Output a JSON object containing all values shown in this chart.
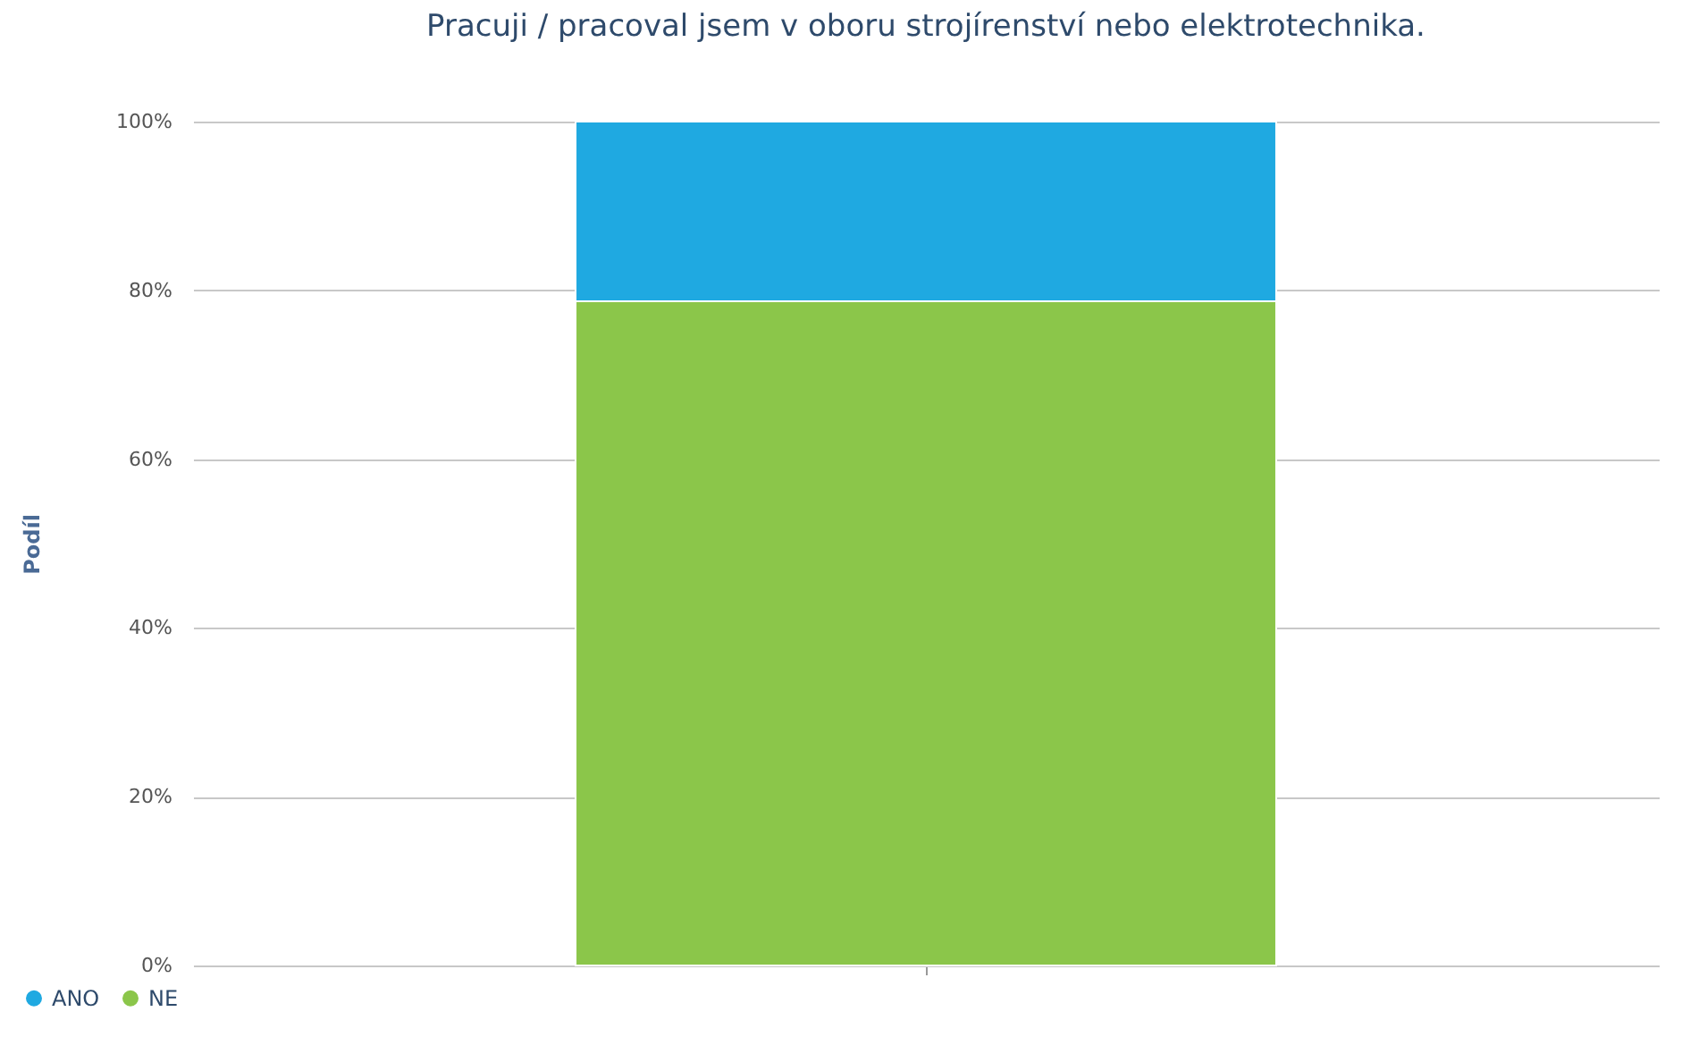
{
  "chart_data": {
    "type": "bar",
    "title": "Pracuji / pracoval jsem v oboru strojírenství nebo elektrotechnika.",
    "ylabel": "Podíl",
    "categories": [
      null
    ],
    "stacked": true,
    "series": [
      {
        "name": "NE",
        "color": "#8bc64a",
        "values": [
          78.7
        ]
      },
      {
        "name": "ANO",
        "color": "#1fa9e1",
        "values": [
          21.3
        ]
      }
    ],
    "ylim": [
      0,
      100
    ],
    "yticks": [
      {
        "value": 0,
        "label": "0%"
      },
      {
        "value": 20,
        "label": "20%"
      },
      {
        "value": 40,
        "label": "40%"
      },
      {
        "value": 60,
        "label": "60%"
      },
      {
        "value": 80,
        "label": "80%"
      },
      {
        "value": 100,
        "label": "100%"
      }
    ],
    "grid": "y",
    "legend": "bottom left"
  }
}
